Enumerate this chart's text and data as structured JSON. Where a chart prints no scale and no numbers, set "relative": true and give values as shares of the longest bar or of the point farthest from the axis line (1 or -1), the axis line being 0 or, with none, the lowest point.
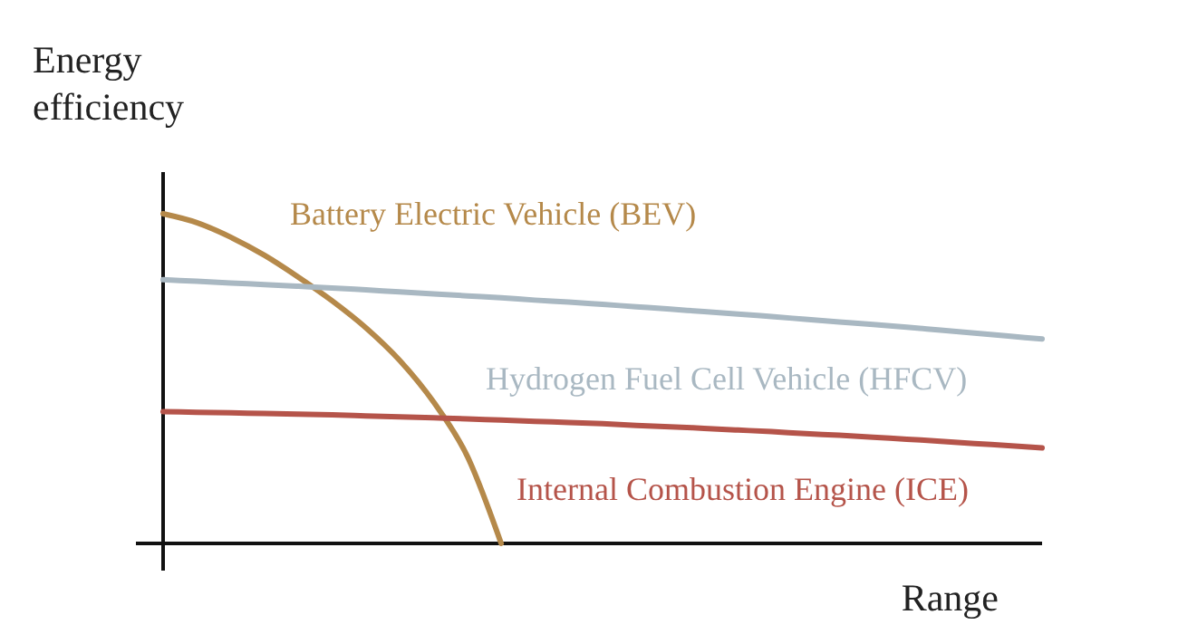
{
  "chart_data": {
    "type": "line",
    "relative": true,
    "xlabel": "Range",
    "ylabel": "Energy efficiency",
    "categories": [
      null,
      null,
      null,
      null,
      null,
      null,
      null,
      null,
      null,
      null,
      null,
      null,
      null,
      null,
      null,
      null,
      null,
      null,
      null,
      null,
      null,
      null,
      null,
      null,
      null,
      null,
      null
    ],
    "series": [
      {
        "name": "Battery Electric Vehicle (BEV)",
        "color": "#b5894a",
        "values": [
          1.0,
          0.973,
          0.929,
          0.874,
          0.808,
          0.736,
          0.654,
          0.555,
          0.429,
          0.264,
          0,
          null,
          null,
          null,
          null,
          null,
          null,
          null,
          null,
          null,
          null,
          null,
          null,
          null,
          null,
          null,
          null
        ]
      },
      {
        "name": "Hydrogen Fuel Cell Vehicle (HFCV)",
        "color": "#a9b8c2",
        "values": [
          0.8,
          0.795,
          0.79,
          0.785,
          0.78,
          0.775,
          0.769,
          0.763,
          0.757,
          0.751,
          0.745,
          0.738,
          0.732,
          0.725,
          0.718,
          0.711,
          0.703,
          0.696,
          0.688,
          0.68,
          0.672,
          0.664,
          0.656,
          0.647,
          0.638,
          0.629,
          0.62
        ]
      },
      {
        "name": "Internal Combustion Engine (ICE)",
        "color": "#b5544a",
        "values": [
          0.4,
          0.398,
          0.396,
          0.394,
          0.392,
          0.39,
          0.387,
          0.384,
          0.381,
          0.378,
          0.374,
          0.37,
          0.367,
          0.363,
          0.358,
          0.354,
          0.349,
          0.344,
          0.339,
          0.333,
          0.328,
          0.322,
          0.316,
          0.31,
          0.303,
          0.297,
          0.29
        ]
      }
    ]
  }
}
